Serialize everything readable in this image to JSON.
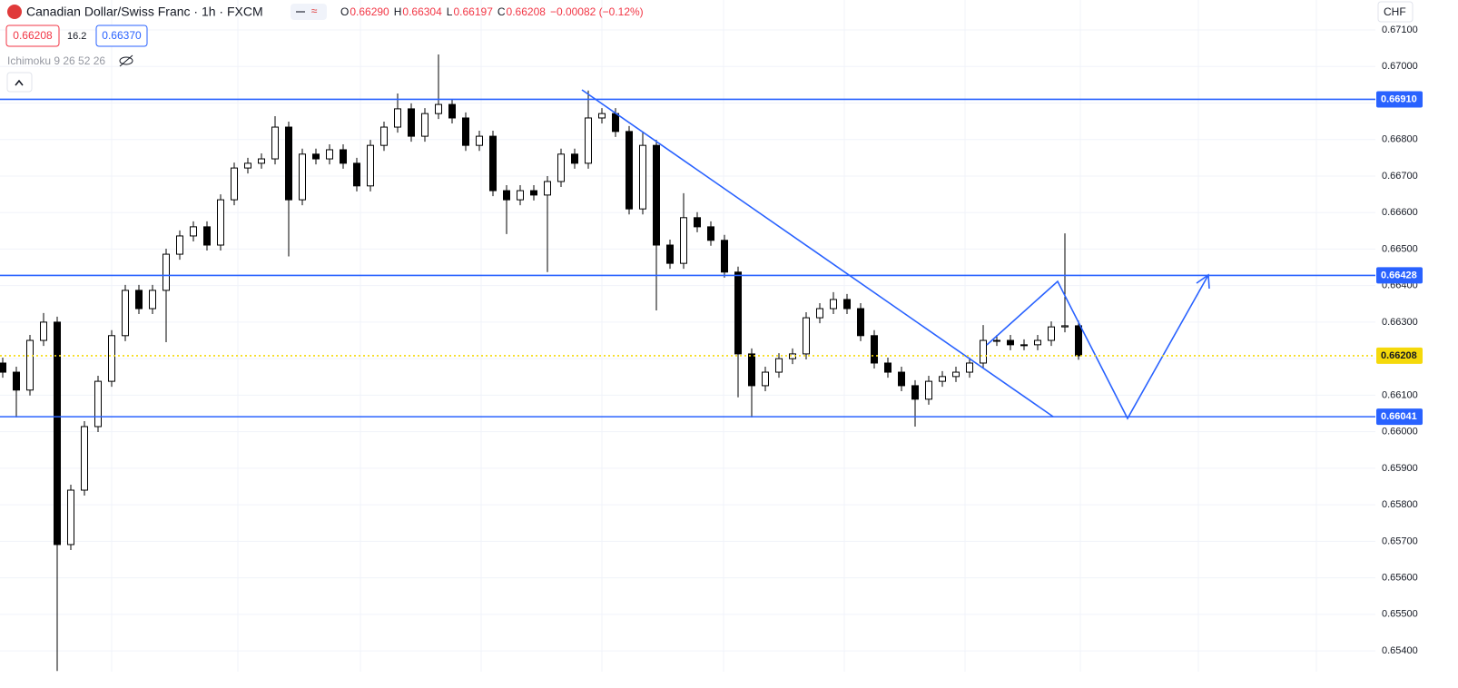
{
  "header": {
    "title": "Canadian Dollar/Swiss Franc · 1h · FXCM",
    "ohlc": [
      {
        "key": "O",
        "text": "0.66290"
      },
      {
        "key": "H",
        "text": "0.66304"
      },
      {
        "key": "L",
        "text": "0.66197"
      },
      {
        "key": "C",
        "text": "0.66208"
      }
    ],
    "change": "−0.00082 (−0.12%)",
    "bid": "0.66208",
    "spread": "16.2",
    "ask": "0.66370",
    "indicator": "Ichimoku 9 26 52 26",
    "currency": "CHF"
  },
  "chart_data": {
    "type": "candlestick",
    "open": [
      0.66188,
      0.66163,
      0.66114,
      0.6625,
      0.663,
      0.65691,
      0.6584,
      0.66014,
      0.66138,
      0.66263,
      0.66387,
      0.66337,
      0.66387,
      0.66486,
      0.66536,
      0.66561,
      0.66511,
      0.66635,
      0.66722,
      0.66735,
      0.66747,
      0.66834,
      0.66635,
      0.6676,
      0.66747,
      0.66772,
      0.66735,
      0.66673,
      0.66784,
      0.66834,
      0.66884,
      0.66809,
      0.66871,
      0.66896,
      0.66859,
      0.66784,
      0.66809,
      0.6666,
      0.66635,
      0.6666,
      0.66648,
      0.66685,
      0.6676,
      0.66735,
      0.66859,
      0.66871,
      0.66822,
      0.6661,
      0.66784,
      0.66511,
      0.66461,
      0.66586,
      0.66561,
      0.66524,
      0.66437,
      0.66213,
      0.66126,
      0.66163,
      0.662,
      0.66213,
      0.66312,
      0.66337,
      0.66362,
      0.66337,
      0.66263,
      0.66188,
      0.66163,
      0.66126,
      0.66089,
      0.66138,
      0.66151,
      0.66163,
      0.66188,
      0.6625,
      0.6625,
      0.66238,
      0.66238,
      0.6625,
      0.66287,
      0.6629
    ],
    "high": [
      0.66203,
      0.66178,
      0.66265,
      0.66325,
      0.66315,
      0.65855,
      0.66029,
      0.66153,
      0.66278,
      0.66402,
      0.66402,
      0.66402,
      0.66501,
      0.66551,
      0.66576,
      0.66576,
      0.6665,
      0.66737,
      0.6675,
      0.66762,
      0.66864,
      0.66849,
      0.66775,
      0.66775,
      0.66787,
      0.66787,
      0.6675,
      0.66799,
      0.66849,
      0.66926,
      0.66899,
      0.66886,
      0.67033,
      0.66911,
      0.66874,
      0.66824,
      0.66824,
      0.66675,
      0.66675,
      0.66675,
      0.667,
      0.66775,
      0.66775,
      0.66934,
      0.66886,
      0.66886,
      0.66837,
      0.66822,
      0.66799,
      0.66526,
      0.66653,
      0.66601,
      0.66576,
      0.66539,
      0.66452,
      0.66228,
      0.66178,
      0.66215,
      0.66228,
      0.66327,
      0.66352,
      0.66382,
      0.66377,
      0.66352,
      0.66278,
      0.66203,
      0.66178,
      0.66141,
      0.66153,
      0.66166,
      0.66178,
      0.66203,
      0.66292,
      0.66265,
      0.66265,
      0.66253,
      0.66265,
      0.66302,
      0.66543,
      0.66304
    ],
    "low": [
      0.66148,
      0.66039,
      0.66099,
      0.66235,
      0.65345,
      0.65676,
      0.65825,
      0.65999,
      0.66123,
      0.66248,
      0.66322,
      0.66322,
      0.66245,
      0.66471,
      0.66521,
      0.66496,
      0.66496,
      0.6662,
      0.66707,
      0.6672,
      0.66732,
      0.6648,
      0.6662,
      0.66732,
      0.66732,
      0.6672,
      0.66658,
      0.66658,
      0.66769,
      0.66819,
      0.66794,
      0.66794,
      0.66856,
      0.66844,
      0.66769,
      0.66769,
      0.66645,
      0.66541,
      0.6662,
      0.66633,
      0.66437,
      0.6667,
      0.6672,
      0.6672,
      0.66844,
      0.66807,
      0.66595,
      0.66595,
      0.66332,
      0.66446,
      0.66446,
      0.66546,
      0.66509,
      0.66422,
      0.66094,
      0.66039,
      0.66111,
      0.66148,
      0.66185,
      0.66198,
      0.66297,
      0.66322,
      0.66322,
      0.66248,
      0.66173,
      0.66148,
      0.66111,
      0.66014,
      0.66074,
      0.66123,
      0.66136,
      0.66148,
      0.66173,
      0.66235,
      0.66223,
      0.66223,
      0.66223,
      0.66235,
      0.66272,
      0.66197
    ],
    "close": [
      0.66163,
      0.66114,
      0.6625,
      0.663,
      0.65691,
      0.6584,
      0.66014,
      0.66138,
      0.66263,
      0.66387,
      0.66337,
      0.66387,
      0.66486,
      0.66536,
      0.66561,
      0.66511,
      0.66635,
      0.66722,
      0.66735,
      0.66747,
      0.66834,
      0.66635,
      0.6676,
      0.66747,
      0.66772,
      0.66735,
      0.66673,
      0.66784,
      0.66834,
      0.66884,
      0.66809,
      0.66871,
      0.66896,
      0.66859,
      0.66784,
      0.66809,
      0.6666,
      0.66635,
      0.6666,
      0.66648,
      0.66685,
      0.6676,
      0.66735,
      0.66859,
      0.66871,
      0.66822,
      0.6661,
      0.66784,
      0.66511,
      0.66461,
      0.66586,
      0.66561,
      0.66524,
      0.66437,
      0.66213,
      0.66126,
      0.66163,
      0.662,
      0.66213,
      0.66312,
      0.66337,
      0.66362,
      0.66337,
      0.66263,
      0.66188,
      0.66163,
      0.66126,
      0.66089,
      0.66138,
      0.66151,
      0.66163,
      0.66188,
      0.6625,
      0.6625,
      0.66238,
      0.66238,
      0.6625,
      0.66287,
      0.6629,
      0.66208
    ],
    "up_color": "#ffffff",
    "down_color": "#000000",
    "wick_color": "#000000",
    "ylim": [
      0.65343,
      0.67182
    ],
    "yticks": [
      {
        "value": 0.671,
        "label": "0.67100"
      },
      {
        "value": 0.67,
        "label": "0.67000"
      },
      {
        "value": 0.669,
        "label": "0.66900"
      },
      {
        "value": 0.668,
        "label": "0.66800"
      },
      {
        "value": 0.667,
        "label": "0.66700"
      },
      {
        "value": 0.666,
        "label": "0.66600"
      },
      {
        "value": 0.665,
        "label": "0.66500"
      },
      {
        "value": 0.664,
        "label": "0.66400"
      },
      {
        "value": 0.663,
        "label": "0.66300"
      },
      {
        "value": 0.662,
        "label": "0.66200"
      },
      {
        "value": 0.661,
        "label": "0.66100"
      },
      {
        "value": 0.66,
        "label": "0.66000"
      },
      {
        "value": 0.659,
        "label": "0.65900"
      },
      {
        "value": 0.658,
        "label": "0.65800"
      },
      {
        "value": 0.657,
        "label": "0.65700"
      },
      {
        "value": 0.656,
        "label": "0.65600"
      },
      {
        "value": 0.655,
        "label": "0.65500"
      },
      {
        "value": 0.654,
        "label": "0.65400"
      }
    ],
    "grid": true,
    "levels": [
      {
        "value": 0.6691,
        "label": "0.66910",
        "color": "#2962ff"
      },
      {
        "value": 0.66428,
        "label": "0.66428",
        "color": "#2962ff"
      },
      {
        "value": 0.66041,
        "label": "0.66041",
        "color": "#2962ff"
      }
    ],
    "last_price": {
      "value": 0.66208,
      "label": "0.66208",
      "color": "#f5d90a"
    }
  }
}
